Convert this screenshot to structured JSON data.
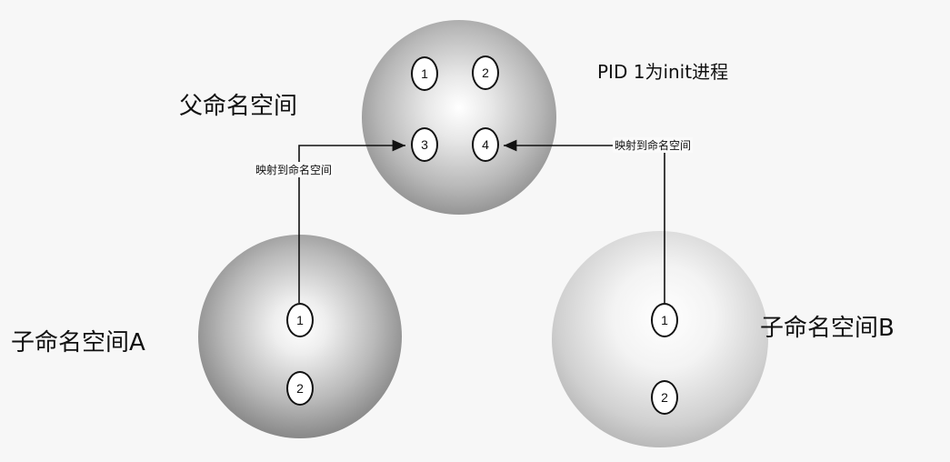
{
  "diagram": {
    "parent_label": "父命名空间",
    "init_label": "PID 1为init进程",
    "child_a_label": "子命名空间A",
    "child_b_label": "子命名空间B",
    "map_label_left": "映射到命名空间",
    "map_label_right": "映射到命名空间",
    "parent_nodes": [
      "1",
      "2",
      "3",
      "4"
    ],
    "child_a_nodes": [
      "1",
      "2"
    ],
    "child_b_nodes": [
      "1",
      "2"
    ]
  }
}
